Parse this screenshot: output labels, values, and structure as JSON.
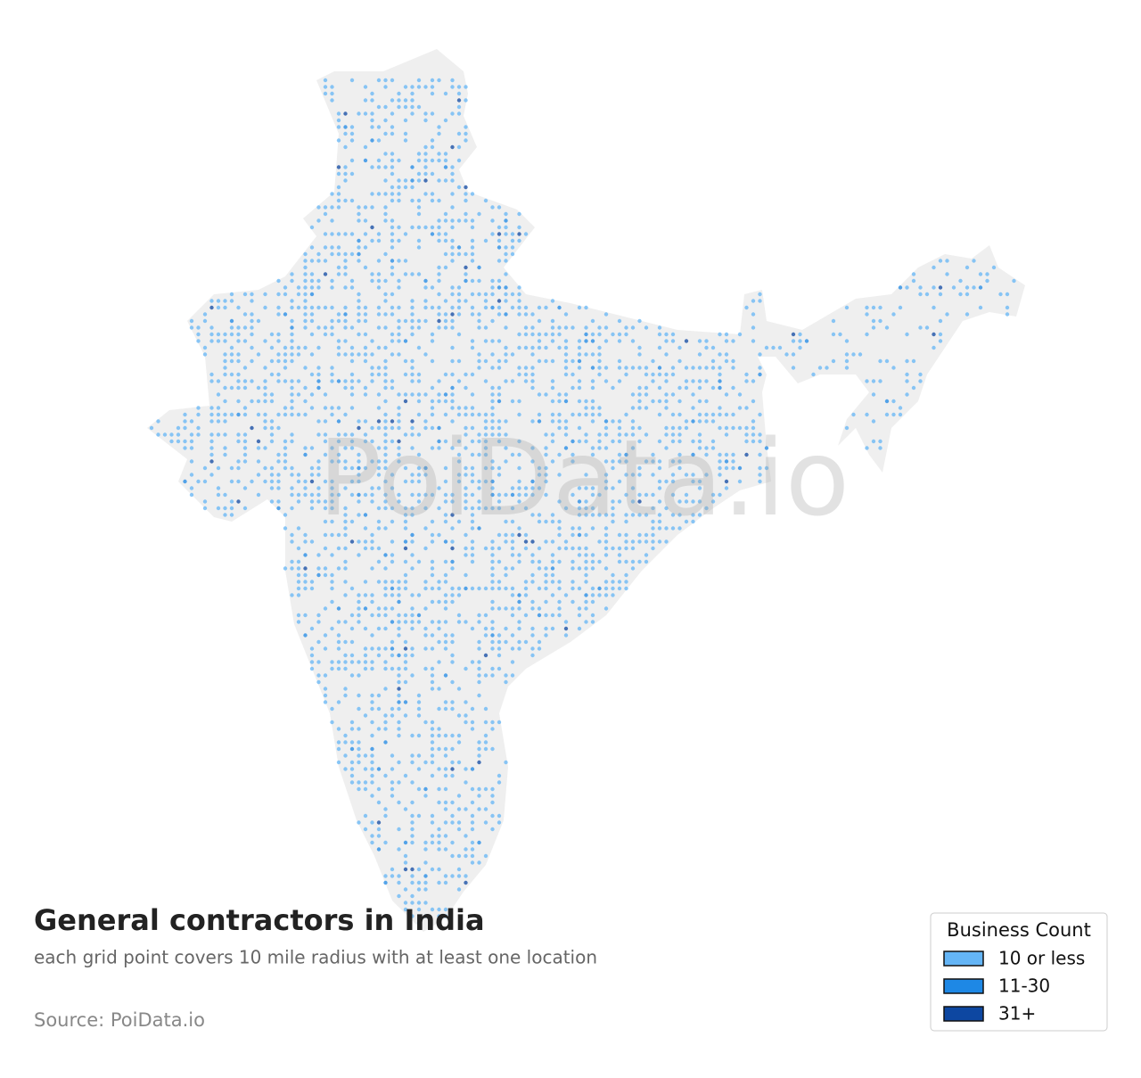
{
  "title": "General contractors in India",
  "subtitle": "each grid point covers 10 mile radius with at least one location",
  "source": "Source: PoiData.io",
  "watermark": "PoiData.io",
  "legend": {
    "title": "Business Count",
    "items": [
      {
        "label": "10 or less",
        "color": "#64b5f6"
      },
      {
        "label": "11-30",
        "color": "#1e88e5"
      },
      {
        "label": "31+",
        "color": "#0d47a1"
      }
    ]
  }
}
